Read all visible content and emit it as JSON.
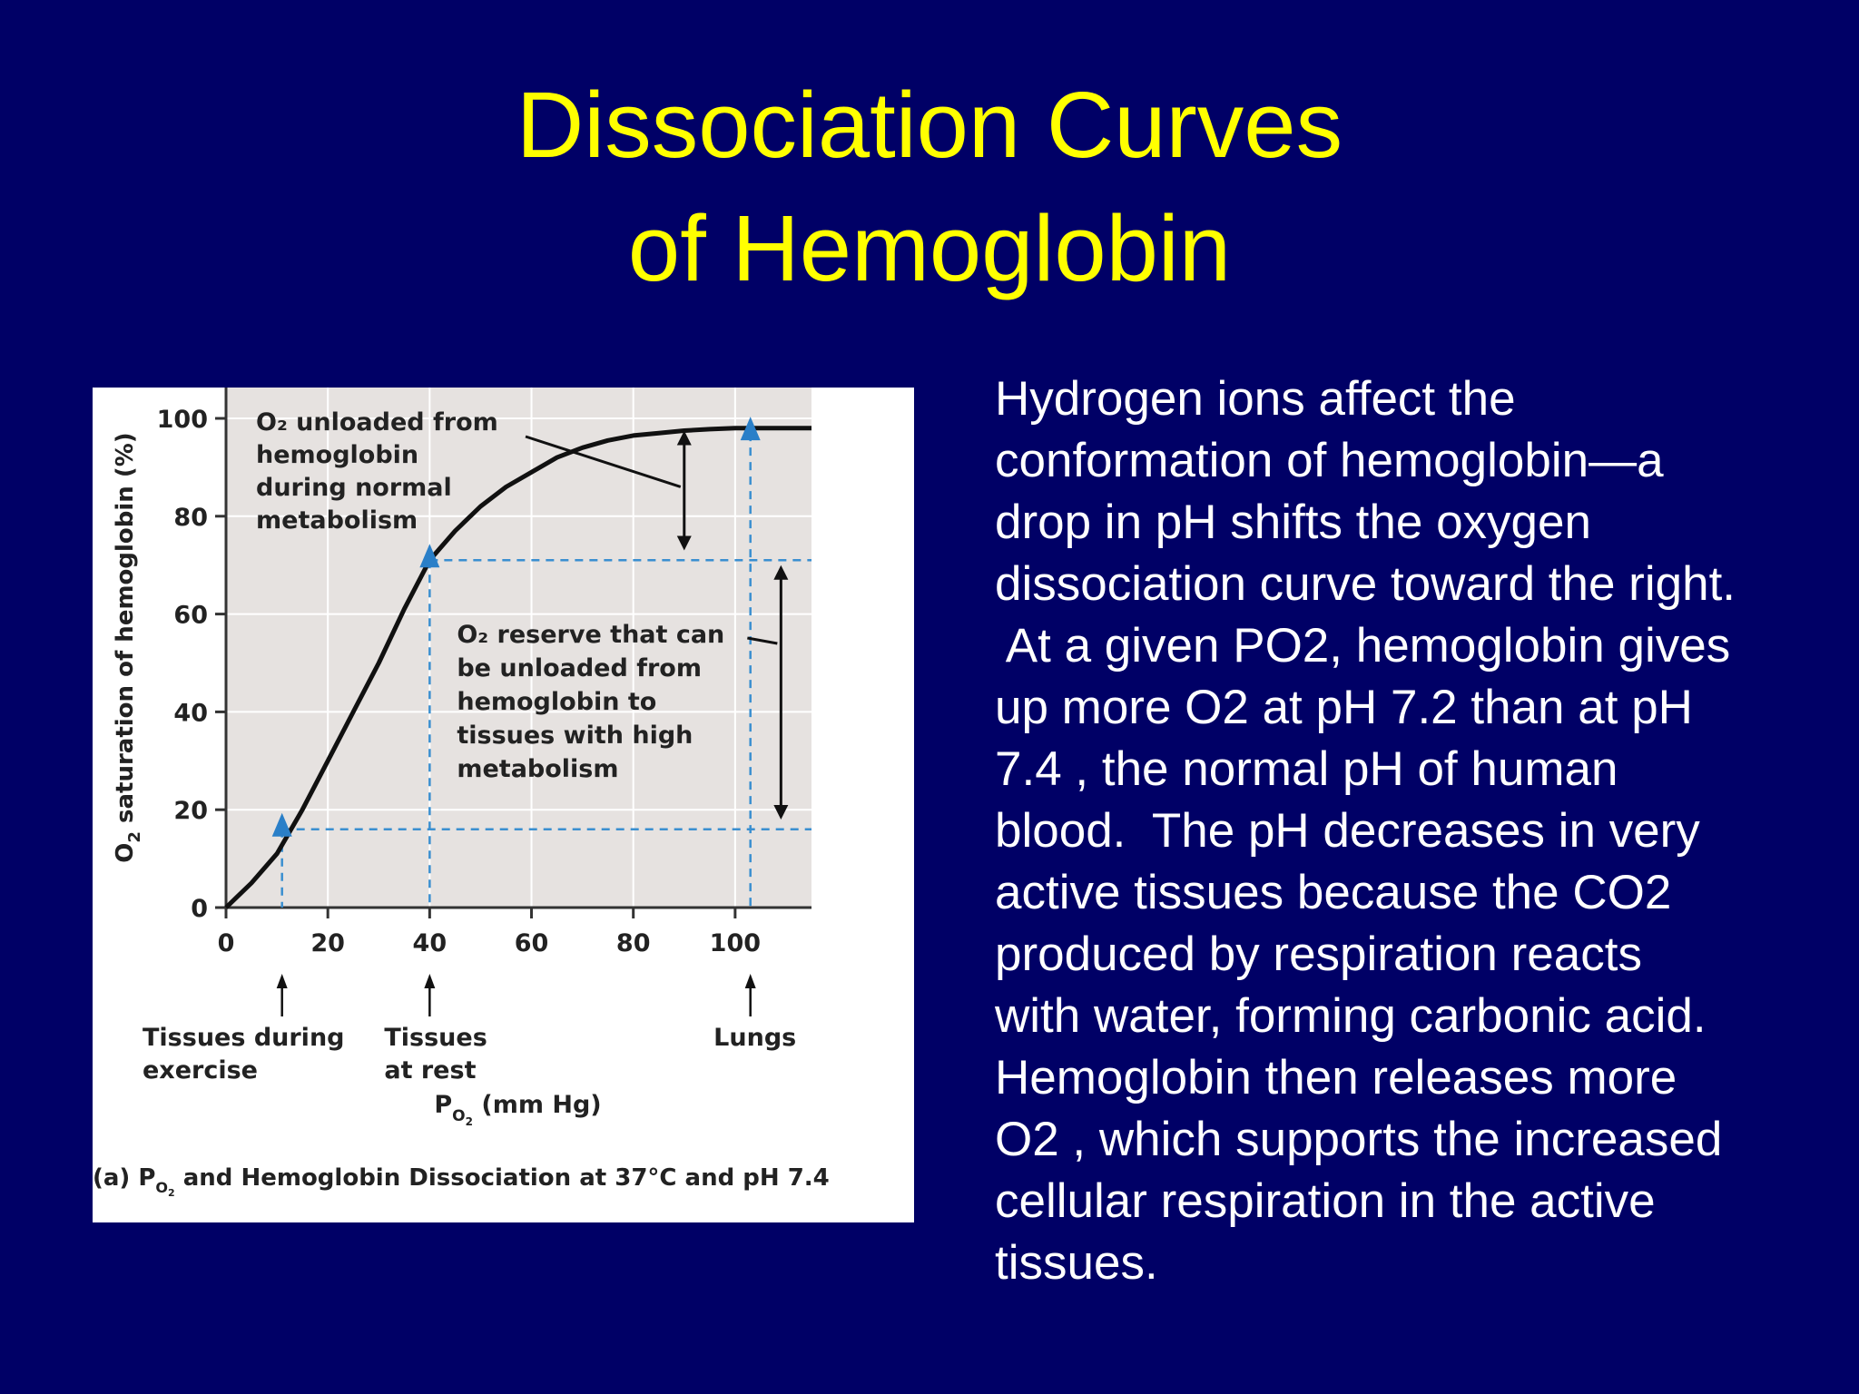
{
  "slide": {
    "title_lines": [
      "Dissociation Curves",
      "of Hemoglobin"
    ],
    "body_lines": [
      "Hydrogen ions affect the",
      "conformation of hemoglobin—a",
      "drop in pH shifts the oxygen",
      "dissociation curve toward the right.",
      " At a given PO2, hemoglobin gives",
      "up more O2 at pH 7.2 than at pH",
      "7.4 , the normal pH of human",
      "blood.  The pH decreases in very",
      "active tissues because the CO2",
      "produced by respiration reacts",
      "with water, forming carbonic acid.",
      "Hemoglobin then releases more",
      "O2 , which supports the increased",
      "cellular respiration in the active",
      "tissues."
    ]
  },
  "colors": {
    "background": "#000066",
    "title": "#ffff00",
    "body_text": "#ffffff",
    "plot_background": "#e6e2e0",
    "curve": "#111111",
    "marker": "#2a7fc8",
    "guide": "#3a8fd0"
  },
  "chart_data": {
    "type": "line",
    "title": "",
    "ylabel_pre": "O",
    "ylabel_sub": "2",
    "ylabel_post": " saturation of hemoglobin (%)",
    "xlabel_pre": "P",
    "xlabel_sub": "O",
    "xlabel_sub2": "2",
    "xlabel_post": " (mm Hg)",
    "xlim": [
      0,
      115
    ],
    "ylim": [
      0,
      105
    ],
    "xticks": [
      "0",
      "20",
      "40",
      "60",
      "80",
      "100"
    ],
    "xtick_values": [
      0,
      20,
      40,
      60,
      80,
      100
    ],
    "yticks": [
      "0",
      "20",
      "40",
      "60",
      "80",
      "100"
    ],
    "ytick_values": [
      0,
      20,
      40,
      60,
      80,
      100
    ],
    "grid": true,
    "series": [
      {
        "x": [
          0,
          2,
          5,
          10,
          15,
          20,
          25,
          30,
          35,
          40,
          45,
          50,
          55,
          60,
          65,
          70,
          75,
          80,
          85,
          90,
          95,
          100,
          105,
          110,
          115
        ],
        "y": [
          0,
          2,
          5,
          11,
          20,
          30,
          40,
          50,
          61,
          71,
          77,
          82,
          86,
          89,
          92,
          94,
          95.5,
          96.5,
          97,
          97.5,
          97.8,
          98,
          98,
          98,
          98
        ]
      }
    ],
    "markers": [
      {
        "x": 11,
        "y": 16
      },
      {
        "x": 40,
        "y": 71
      },
      {
        "x": 103,
        "y": 97
      }
    ],
    "guides": {
      "vertical": [
        11,
        40,
        103
      ],
      "horizontal": [
        16,
        71
      ]
    },
    "annotations": {
      "unloaded_lines": [
        "O₂ unloaded from",
        "hemoglobin",
        "during normal",
        "metabolism"
      ],
      "reserve_lines": [
        "O₂ reserve that can",
        "be unloaded from",
        "hemoglobin to",
        "tissues with high",
        "metabolism"
      ],
      "exercise_lines": [
        "Tissues during",
        "exercise"
      ],
      "rest_lines": [
        "Tissues",
        "at rest"
      ],
      "lungs_lines": [
        "Lungs"
      ],
      "caption_pre": "(a) P",
      "caption_sub": "O",
      "caption_sub2": "2",
      "caption_post": " and Hemoglobin Dissociation at 37°C and pH 7.4"
    }
  }
}
